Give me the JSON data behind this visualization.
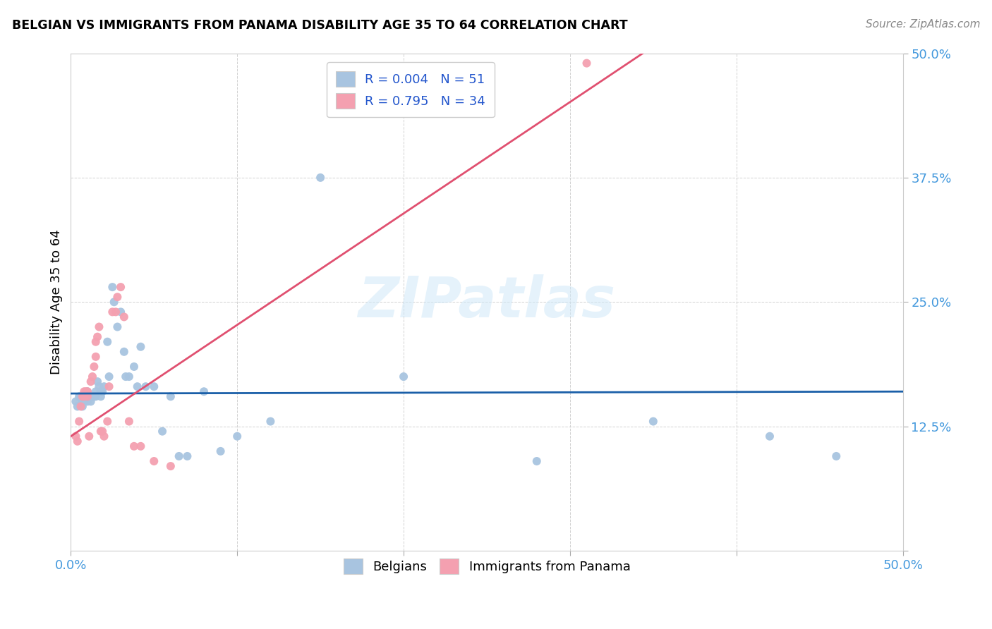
{
  "title": "BELGIAN VS IMMIGRANTS FROM PANAMA DISABILITY AGE 35 TO 64 CORRELATION CHART",
  "source": "Source: ZipAtlas.com",
  "xlabel": "",
  "ylabel": "Disability Age 35 to 64",
  "xlim": [
    0.0,
    0.5
  ],
  "ylim": [
    0.0,
    0.5
  ],
  "xticks": [
    0.0,
    0.1,
    0.2,
    0.3,
    0.4,
    0.5
  ],
  "yticks": [
    0.0,
    0.125,
    0.25,
    0.375,
    0.5
  ],
  "xticklabels": [
    "0.0%",
    "",
    "",
    "",
    "",
    "50.0%"
  ],
  "yticklabels": [
    "",
    "12.5%",
    "25.0%",
    "37.5%",
    "50.0%"
  ],
  "legend1_label": "R = 0.004   N = 51",
  "legend2_label": "R = 0.795   N = 34",
  "belgian_color": "#a8c4e0",
  "panama_color": "#f4a0b0",
  "regression_belgian_color": "#1a5fa8",
  "regression_panama_color": "#e05070",
  "watermark": "ZIPatlas",
  "belgian_x": [
    0.003,
    0.004,
    0.005,
    0.006,
    0.007,
    0.007,
    0.008,
    0.008,
    0.009,
    0.01,
    0.01,
    0.011,
    0.012,
    0.013,
    0.014,
    0.015,
    0.015,
    0.016,
    0.017,
    0.018,
    0.018,
    0.019,
    0.02,
    0.022,
    0.023,
    0.025,
    0.026,
    0.028,
    0.03,
    0.032,
    0.033,
    0.035,
    0.038,
    0.04,
    0.042,
    0.045,
    0.05,
    0.055,
    0.06,
    0.065,
    0.07,
    0.08,
    0.09,
    0.1,
    0.12,
    0.15,
    0.2,
    0.28,
    0.35,
    0.42,
    0.46
  ],
  "belgian_y": [
    0.15,
    0.145,
    0.155,
    0.155,
    0.15,
    0.145,
    0.155,
    0.15,
    0.155,
    0.16,
    0.15,
    0.155,
    0.15,
    0.155,
    0.155,
    0.16,
    0.155,
    0.17,
    0.165,
    0.16,
    0.155,
    0.16,
    0.165,
    0.21,
    0.175,
    0.265,
    0.25,
    0.225,
    0.24,
    0.2,
    0.175,
    0.175,
    0.185,
    0.165,
    0.205,
    0.165,
    0.165,
    0.12,
    0.155,
    0.095,
    0.095,
    0.16,
    0.1,
    0.115,
    0.13,
    0.375,
    0.175,
    0.09,
    0.13,
    0.115,
    0.095
  ],
  "panama_x": [
    0.003,
    0.004,
    0.005,
    0.006,
    0.007,
    0.008,
    0.008,
    0.009,
    0.01,
    0.01,
    0.011,
    0.012,
    0.013,
    0.014,
    0.015,
    0.015,
    0.016,
    0.017,
    0.018,
    0.019,
    0.02,
    0.022,
    0.023,
    0.025,
    0.027,
    0.028,
    0.03,
    0.032,
    0.035,
    0.038,
    0.042,
    0.05,
    0.06,
    0.31
  ],
  "panama_y": [
    0.115,
    0.11,
    0.13,
    0.145,
    0.155,
    0.16,
    0.155,
    0.16,
    0.155,
    0.16,
    0.115,
    0.17,
    0.175,
    0.185,
    0.195,
    0.21,
    0.215,
    0.225,
    0.12,
    0.12,
    0.115,
    0.13,
    0.165,
    0.24,
    0.24,
    0.255,
    0.265,
    0.235,
    0.13,
    0.105,
    0.105,
    0.09,
    0.085,
    0.49
  ],
  "regression_belgian_slope": 0.004,
  "regression_belgian_intercept": 0.158,
  "regression_panama_slope": 1.12,
  "regression_panama_intercept": 0.115
}
